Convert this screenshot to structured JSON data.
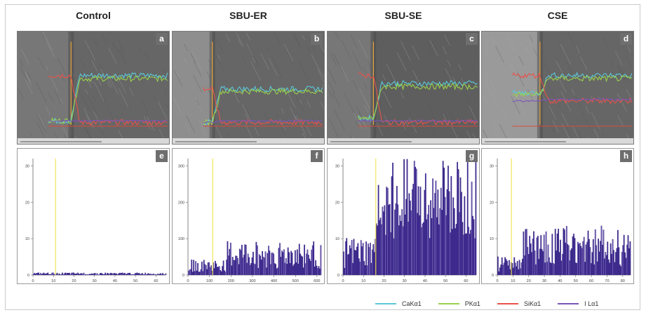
{
  "columns": [
    {
      "title": "Control",
      "sem_tag": "a",
      "hist_tag": "e"
    },
    {
      "title": "SBU-ER",
      "sem_tag": "b",
      "hist_tag": "f"
    },
    {
      "title": "SBU-SE",
      "sem_tag": "c",
      "hist_tag": "g"
    },
    {
      "title": "CSE",
      "sem_tag": "d",
      "hist_tag": "h"
    }
  ],
  "legend": [
    {
      "label": "CaKα1",
      "color": "#5bc8d8"
    },
    {
      "label": "PKα1",
      "color": "#9ad14b"
    },
    {
      "label": "SiKα1",
      "color": "#e8524a"
    },
    {
      "label": "I Lα1",
      "color": "#7a55b8"
    }
  ],
  "chart_data": [
    {
      "type": "line",
      "panel": "a",
      "description_free": true,
      "x_range": [
        0,
        100
      ],
      "y_range": [
        0,
        100
      ],
      "interface_x": 35,
      "series": [
        {
          "name": "CaKα1",
          "level_before": 5,
          "level_after": 62
        },
        {
          "name": "PKα1",
          "level_before": 5,
          "level_after": 58
        },
        {
          "name": "SiKα1",
          "level_before": 62,
          "level_after": 3
        },
        {
          "name": "I Lα1",
          "level_before": 5,
          "level_after": 5
        }
      ]
    },
    {
      "type": "line",
      "panel": "b",
      "x_range": [
        0,
        100
      ],
      "y_range": [
        0,
        100
      ],
      "interface_x": 26,
      "series": [
        {
          "name": "CaKα1",
          "level_before": 3,
          "level_after": 45
        },
        {
          "name": "PKα1",
          "level_before": 3,
          "level_after": 42
        },
        {
          "name": "SiKα1",
          "level_before": 45,
          "level_after": 3
        },
        {
          "name": "I Lα1",
          "level_before": 3,
          "level_after": 5
        }
      ]
    },
    {
      "type": "line",
      "panel": "c",
      "x_range": [
        0,
        100
      ],
      "y_range": [
        0,
        100
      ],
      "interface_x": 30,
      "series": [
        {
          "name": "CaKα1",
          "level_before": 8,
          "level_after": 52
        },
        {
          "name": "PKα1",
          "level_before": 8,
          "level_after": 48
        },
        {
          "name": "SiKα1",
          "level_before": 62,
          "level_after": 3
        },
        {
          "name": "I Lα1",
          "level_before": 5,
          "level_after": 5
        }
      ]
    },
    {
      "type": "line",
      "panel": "d",
      "x_range": [
        0,
        100
      ],
      "y_range": [
        0,
        100
      ],
      "interface_x": 38,
      "series": [
        {
          "name": "CaKα1",
          "level_before": 40,
          "level_after": 62
        },
        {
          "name": "PKα1",
          "level_before": 38,
          "level_after": 58
        },
        {
          "name": "SiKα1",
          "level_before": 62,
          "level_after": 30
        },
        {
          "name": "I Lα1",
          "level_before": 30,
          "level_after": 32
        }
      ]
    },
    {
      "type": "bar",
      "panel": "e",
      "x_ticks": [
        "0",
        "10",
        "20",
        "30",
        "40",
        "50",
        "60"
      ],
      "y_ticks": [
        "0",
        "10",
        "20",
        "30"
      ],
      "xlim": [
        0,
        65
      ],
      "ylim": [
        0,
        32
      ],
      "marker_x": 11,
      "low_mean": 0.4,
      "high_mean": 0.4,
      "step_x": 11
    },
    {
      "type": "bar",
      "panel": "f",
      "x_ticks": [
        "0",
        "100",
        "200",
        "300",
        "400",
        "500",
        "600"
      ],
      "y_ticks": [
        "0",
        "100",
        "200",
        "300"
      ],
      "xlim": [
        0,
        620
      ],
      "ylim": [
        0,
        320
      ],
      "marker_x": 115,
      "low_mean": 25,
      "high_mean": 55,
      "step_x": 180
    },
    {
      "type": "bar",
      "panel": "g",
      "x_ticks": [
        "0",
        "10",
        "20",
        "30",
        "40",
        "50",
        "60"
      ],
      "y_ticks": [
        "0",
        "10",
        "20",
        "30"
      ],
      "xlim": [
        0,
        65
      ],
      "ylim": [
        0,
        32
      ],
      "marker_x": 16,
      "low_mean": 6,
      "high_mean": 20,
      "step_x": 16
    },
    {
      "type": "bar",
      "panel": "h",
      "x_ticks": [
        "0",
        "10",
        "20",
        "30",
        "40",
        "50",
        "60",
        "70",
        "80"
      ],
      "y_ticks": [
        "0",
        "10",
        "20",
        "30"
      ],
      "xlim": [
        0,
        85
      ],
      "ylim": [
        0,
        32
      ],
      "marker_x": 9,
      "low_mean": 3,
      "high_mean": 8,
      "step_x": 16
    }
  ]
}
